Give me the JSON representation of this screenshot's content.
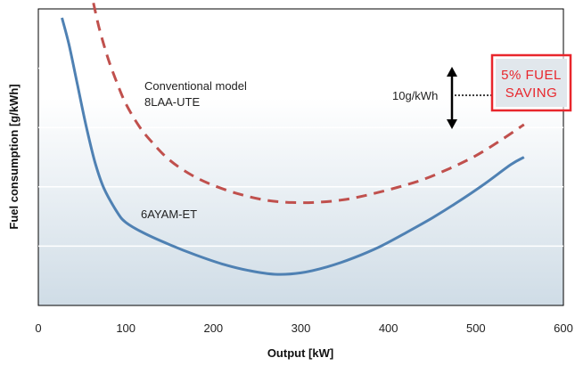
{
  "chart_data": {
    "type": "line",
    "xlabel": "Output [kW]",
    "ylabel": "Fuel consumption [g/kWh]",
    "xlim": [
      0,
      600
    ],
    "xticks": [
      "0",
      "100",
      "200",
      "300",
      "400",
      "500",
      "600"
    ],
    "ylim": [
      0,
      10
    ],
    "grid": "horizontal",
    "series": [
      {
        "name": "Conventional model 8LAA-UTE",
        "style": "dashed",
        "color": "#c0504d",
        "x": [
          63,
          70,
          80,
          90,
          100,
          115,
          130,
          150,
          175,
          200,
          230,
          260,
          290,
          320,
          350,
          380,
          410,
          440,
          470,
          500,
          530,
          555
        ],
        "y": [
          10.2,
          9.3,
          8.3,
          7.5,
          6.8,
          6.05,
          5.5,
          4.9,
          4.4,
          4.05,
          3.75,
          3.55,
          3.47,
          3.48,
          3.57,
          3.75,
          3.98,
          4.25,
          4.62,
          5.05,
          5.6,
          6.1
        ]
      },
      {
        "name": "6AYAM-ET",
        "style": "solid",
        "color": "#4f81b3",
        "x": [
          27,
          35,
          45,
          55,
          65,
          75,
          90,
          100,
          120,
          150,
          180,
          210,
          240,
          270,
          300,
          330,
          360,
          390,
          420,
          450,
          480,
          510,
          540,
          555
        ],
        "y": [
          9.7,
          8.8,
          7.4,
          6.0,
          4.8,
          3.95,
          3.15,
          2.8,
          2.45,
          2.05,
          1.7,
          1.4,
          1.18,
          1.05,
          1.1,
          1.3,
          1.6,
          1.98,
          2.45,
          2.95,
          3.5,
          4.1,
          4.75,
          5.0
        ]
      }
    ],
    "annotations": {
      "conventional_label_line1": "Conventional model",
      "conventional_label_line2": "8LAA-UTE",
      "new_model_label": "6AYAM-ET",
      "difference_label": "10g/kWh",
      "saving_badge_line1": "5% FUEL",
      "saving_badge_line2": "SAVING"
    },
    "colors": {
      "badge_border": "#e8262c",
      "badge_text": "#e8262c",
      "arrow": "#000000"
    }
  }
}
